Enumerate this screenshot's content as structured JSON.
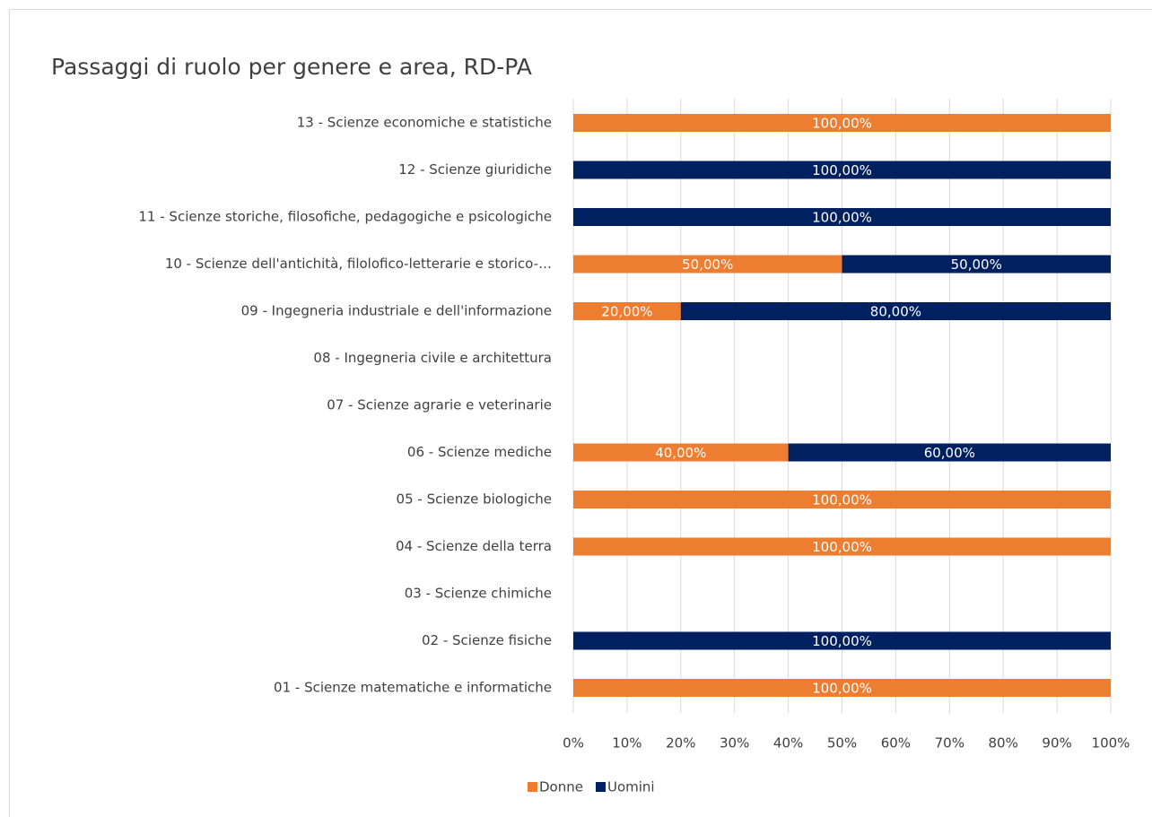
{
  "chart_data": {
    "type": "stacked_barh",
    "title": "Passaggi di ruolo per genere e area, RD-PA",
    "categories": [
      "01 - Scienze matematiche e informatiche",
      "02 - Scienze fisiche",
      "03 - Scienze chimiche",
      "04 - Scienze della terra",
      "05 - Scienze biologiche",
      "06 - Scienze mediche",
      "07 - Scienze agrarie e veterinarie",
      "08 - Ingegneria civile e architettura",
      "09 - Ingegneria industriale e dell'informazione",
      "10 - Scienze dell'antichità, filolofico-letterarie e storico-…",
      "11 - Scienze storiche, filosofiche, pedagogiche e psicologiche",
      "12 - Scienze giuridiche",
      "13 - Scienze economiche e statistiche"
    ],
    "series": [
      {
        "name": "Donne",
        "color": "#ED7D31",
        "values": [
          100,
          null,
          null,
          100,
          100,
          40,
          null,
          null,
          20,
          50,
          null,
          null,
          100
        ],
        "value_labels": [
          "100,00%",
          null,
          null,
          "100,00%",
          "100,00%",
          "40,00%",
          null,
          null,
          "20,00%",
          "50,00%",
          null,
          null,
          "100,00%"
        ]
      },
      {
        "name": "Uomini",
        "color": "#002060",
        "values": [
          null,
          100,
          null,
          null,
          null,
          60,
          null,
          null,
          80,
          50,
          100,
          100,
          null
        ],
        "value_labels": [
          null,
          "100,00%",
          null,
          null,
          null,
          "60,00%",
          null,
          null,
          "80,00%",
          "50,00%",
          "100,00%",
          "100,00%",
          null
        ]
      }
    ],
    "xlim": [
      0,
      100
    ],
    "xticks": [
      {
        "value": 0,
        "label": "0%"
      },
      {
        "value": 10,
        "label": "10%"
      },
      {
        "value": 20,
        "label": "20%"
      },
      {
        "value": 30,
        "label": "30%"
      },
      {
        "value": 40,
        "label": "40%"
      },
      {
        "value": 50,
        "label": "50%"
      },
      {
        "value": 60,
        "label": "60%"
      },
      {
        "value": 70,
        "label": "70%"
      },
      {
        "value": 80,
        "label": "80%"
      },
      {
        "value": 90,
        "label": "90%"
      },
      {
        "value": 100,
        "label": "100%"
      }
    ],
    "grid": true,
    "legend": "bottom"
  }
}
